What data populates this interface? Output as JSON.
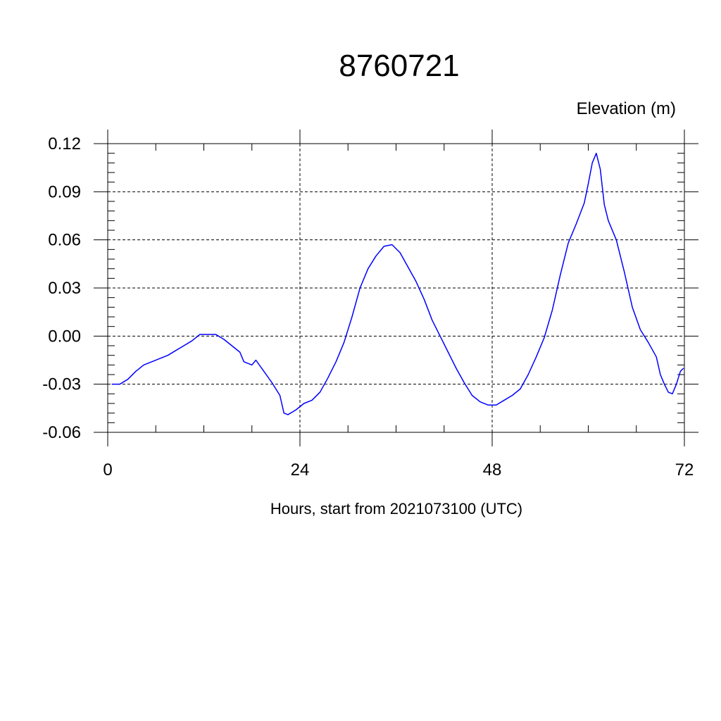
{
  "chart_data": {
    "type": "line",
    "title": "8760721",
    "ylabel": "Elevation (m)",
    "xlabel": "Hours, start from 2021073100 (UTC)",
    "xlim": [
      0,
      72
    ],
    "ylim": [
      -0.06,
      0.12
    ],
    "grid": true,
    "legend": "none",
    "x_ticks": [
      0,
      24,
      48,
      72
    ],
    "x_tick_labels": [
      "0",
      "24",
      "48",
      "72"
    ],
    "y_ticks": [
      -0.06,
      -0.03,
      0.0,
      0.03,
      0.06,
      0.09,
      0.12
    ],
    "y_tick_labels": [
      "-0.06",
      "-0.03",
      "0.00",
      "0.03",
      "0.06",
      "0.09",
      "0.12"
    ],
    "series": [
      {
        "color": "#0000ff",
        "x": [
          0.5,
          1.5,
          2.5,
          3.5,
          4.5,
          5.5,
          6.5,
          7.5,
          8.5,
          9.5,
          10.5,
          11.5,
          12.5,
          13.5,
          14.5,
          15.5,
          16.5,
          17.0,
          17.5,
          18.0,
          18.5,
          19.5,
          20.5,
          21.5,
          22.0,
          22.5,
          23.5,
          24.5,
          25.5,
          26.5,
          27.5,
          28.5,
          29.5,
          30.5,
          31.5,
          32.5,
          33.5,
          34.5,
          35.5,
          36.5,
          37.5,
          38.5,
          39.5,
          40.5,
          41.5,
          42.5,
          43.5,
          44.5,
          45.5,
          46.5,
          47.5,
          48.5,
          49.5,
          50.5,
          51.5,
          52.5,
          53.5,
          54.5,
          55.5,
          56.5,
          57.5,
          58.5,
          59.5,
          60.0,
          60.5,
          61.0,
          61.5,
          62.0,
          62.5,
          63.5,
          64.5,
          65.5,
          66.5,
          67.5,
          68.5,
          69.0,
          69.5,
          70.0,
          70.5,
          71.0,
          71.5,
          71.9
        ],
        "y": [
          -0.03,
          -0.03,
          -0.027,
          -0.022,
          -0.018,
          -0.016,
          -0.014,
          -0.012,
          -0.009,
          -0.006,
          -0.003,
          0.001,
          0.001,
          0.001,
          -0.002,
          -0.006,
          -0.01,
          -0.016,
          -0.017,
          -0.018,
          -0.015,
          -0.022,
          -0.029,
          -0.037,
          -0.048,
          -0.049,
          -0.046,
          -0.042,
          -0.04,
          -0.035,
          -0.026,
          -0.016,
          -0.004,
          0.012,
          0.03,
          0.042,
          0.05,
          0.056,
          0.057,
          0.052,
          0.043,
          0.034,
          0.023,
          0.01,
          0.0,
          -0.01,
          -0.02,
          -0.029,
          -0.037,
          -0.041,
          -0.043,
          -0.043,
          -0.04,
          -0.037,
          -0.033,
          -0.024,
          -0.013,
          -0.001,
          0.016,
          0.038,
          0.058,
          0.07,
          0.083,
          0.095,
          0.108,
          0.114,
          0.104,
          0.082,
          0.072,
          0.06,
          0.04,
          0.018,
          0.004,
          -0.004,
          -0.013,
          -0.024,
          -0.03,
          -0.035,
          -0.036,
          -0.03,
          -0.022,
          -0.02
        ]
      }
    ]
  }
}
